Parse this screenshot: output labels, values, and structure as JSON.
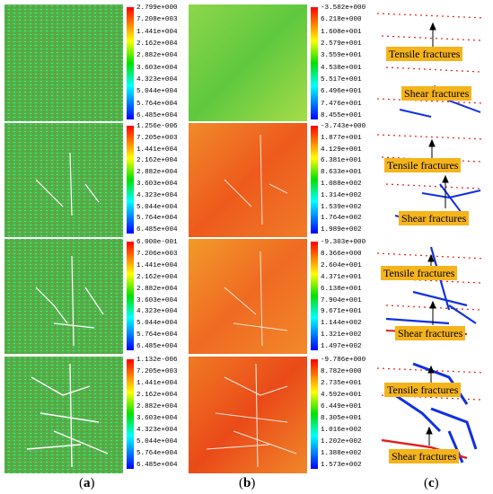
{
  "colorbars_a": [
    [
      "2.799e+000",
      "7.208e+003",
      "1.441e+004",
      "2.162e+004",
      "2.882e+004",
      "3.603e+004",
      "4.323e+004",
      "5.044e+004",
      "5.764e+004",
      "6.485e+004"
    ],
    [
      "1.256e-006",
      "7.205e+003",
      "1.441e+004",
      "2.162e+004",
      "2.882e+004",
      "3.603e+004",
      "4.323e+004",
      "5.044e+004",
      "5.764e+004",
      "6.485e+004"
    ],
    [
      "6.000e-001",
      "7.206e+003",
      "1.441e+004",
      "2.162e+004",
      "2.882e+004",
      "3.603e+004",
      "4.323e+004",
      "5.044e+004",
      "5.764e+004",
      "6.485e+004"
    ],
    [
      "1.132e-006",
      "7.205e+003",
      "1.441e+004",
      "2.162e+004",
      "2.882e+004",
      "3.603e+004",
      "4.323e+004",
      "5.044e+004",
      "5.764e+004",
      "6.485e+004"
    ]
  ],
  "colorbars_b": [
    [
      "-3.582e+000",
      "6.218e+000",
      "1.608e+001",
      "2.579e+001",
      "3.559e+001",
      "4.538e+001",
      "5.517e+001",
      "6.496e+001",
      "7.476e+001",
      "8.455e+001"
    ],
    [
      "-3.743e+000",
      "1.877e+001",
      "4.129e+001",
      "6.381e+001",
      "8.633e+001",
      "1.088e+002",
      "1.314e+002",
      "1.539e+002",
      "1.764e+002",
      "1.989e+002"
    ],
    [
      "-9.303e+000",
      "8.366e+000",
      "2.604e+001",
      "4.371e+001",
      "6.138e+001",
      "7.904e+001",
      "9.671e+001",
      "1.144e+002",
      "1.321e+002",
      "1.497e+002"
    ],
    [
      "-9.786e+000",
      "8.782e+000",
      "2.735e+001",
      "4.592e+001",
      "6.449e+001",
      "8.305e+001",
      "1.016e+002",
      "1.202e+002",
      "1.388e+002",
      "1.573e+002"
    ]
  ],
  "labels": {
    "tensile": "Tensile fractures",
    "shear": "Shear fractures"
  },
  "captions": {
    "a": "a",
    "b": "b",
    "c": "c"
  }
}
